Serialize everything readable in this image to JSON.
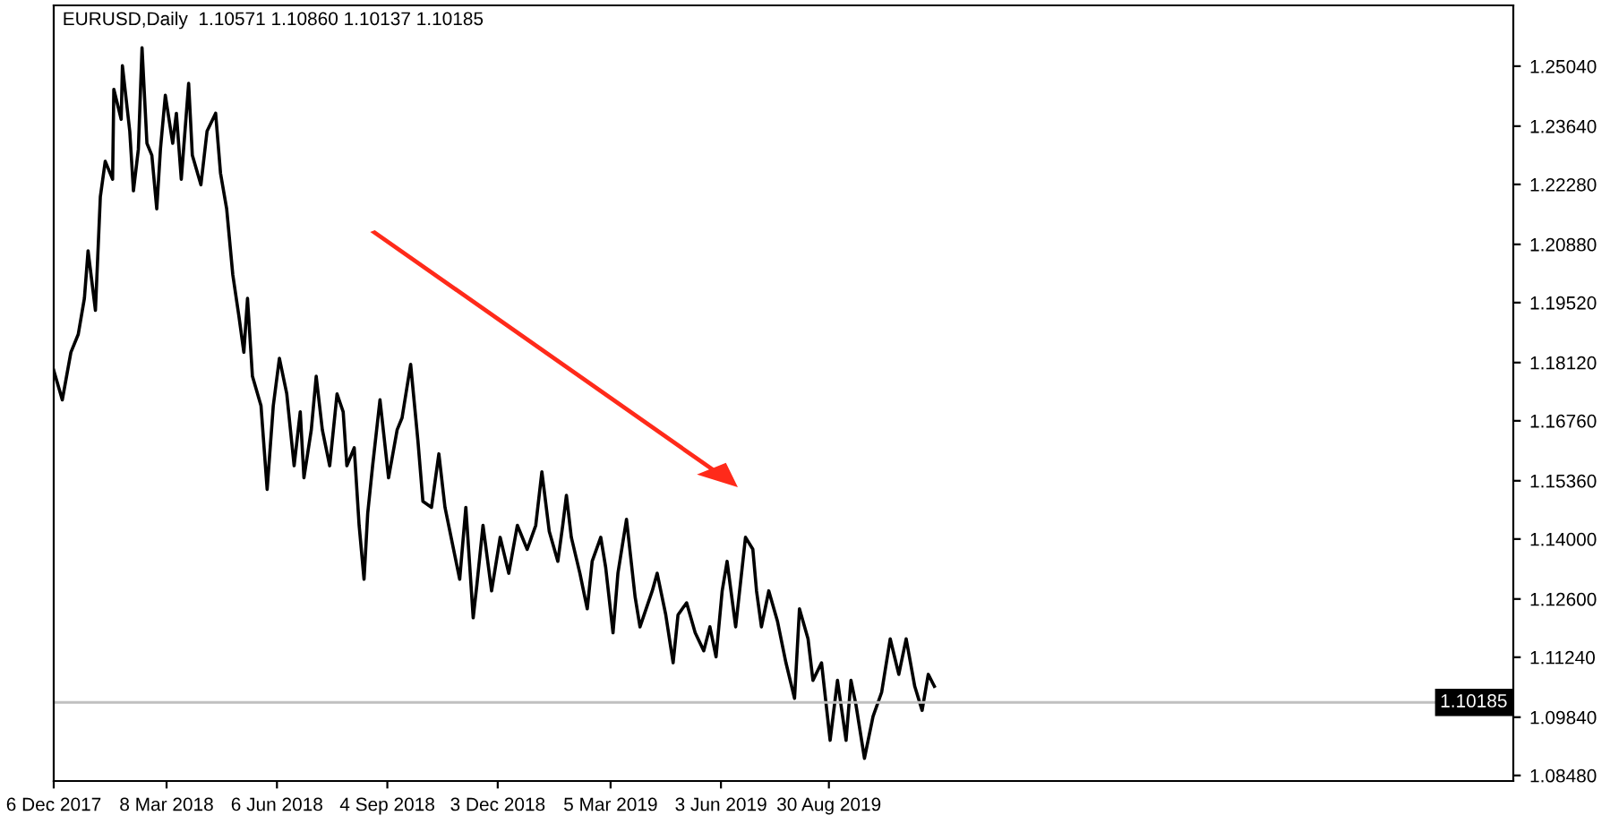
{
  "chart_data": {
    "type": "line",
    "title": "EURUSD,Daily  1.10571 1.10860 1.10137 1.10185",
    "series": [
      {
        "color": "#000000",
        "x": [
          "2017-12-06",
          "2017-12-13",
          "2017-12-20",
          "2017-12-26",
          "2017-12-31",
          "2018-01-03",
          "2018-01-09",
          "2018-01-13",
          "2018-01-17",
          "2018-01-23",
          "2018-01-24",
          "2018-01-30",
          "2018-01-31",
          "2018-02-06",
          "2018-02-09",
          "2018-02-13",
          "2018-02-16",
          "2018-02-20",
          "2018-02-24",
          "2018-02-28",
          "2018-03-03",
          "2018-03-07",
          "2018-03-13",
          "2018-03-16",
          "2018-03-20",
          "2018-03-26",
          "2018-03-29",
          "2018-04-05",
          "2018-04-10",
          "2018-04-17",
          "2018-04-21",
          "2018-04-26",
          "2018-05-01",
          "2018-05-06",
          "2018-05-10",
          "2018-05-13",
          "2018-05-17",
          "2018-05-24",
          "2018-05-29",
          "2018-06-03",
          "2018-06-08",
          "2018-06-14",
          "2018-06-20",
          "2018-06-25",
          "2018-06-28",
          "2018-07-04",
          "2018-07-08",
          "2018-07-13",
          "2018-07-19",
          "2018-07-25",
          "2018-07-30",
          "2018-08-02",
          "2018-08-08",
          "2018-08-12",
          "2018-08-16",
          "2018-08-19",
          "2018-08-23",
          "2018-08-29",
          "2018-09-05",
          "2018-09-12",
          "2018-09-16",
          "2018-09-23",
          "2018-09-29",
          "2018-10-03",
          "2018-10-10",
          "2018-10-16",
          "2018-10-21",
          "2018-10-28",
          "2018-11-02",
          "2018-11-07",
          "2018-11-13",
          "2018-11-16",
          "2018-11-21",
          "2018-11-28",
          "2018-12-05",
          "2018-12-12",
          "2018-12-19",
          "2018-12-27",
          "2019-01-03",
          "2019-01-08",
          "2019-01-14",
          "2019-01-21",
          "2019-01-25",
          "2019-01-28",
          "2019-02-01",
          "2019-02-08",
          "2019-02-14",
          "2019-02-18",
          "2019-02-25",
          "2019-03-01",
          "2019-03-07",
          "2019-03-11",
          "2019-03-18",
          "2019-03-25",
          "2019-03-29",
          "2019-04-08",
          "2019-04-12",
          "2019-04-19",
          "2019-04-25",
          "2019-04-29",
          "2019-05-06",
          "2019-05-13",
          "2019-05-20",
          "2019-05-25",
          "2019-05-30",
          "2019-06-04",
          "2019-06-08",
          "2019-06-15",
          "2019-06-23",
          "2019-06-29",
          "2019-07-02",
          "2019-07-06",
          "2019-07-12",
          "2019-07-19",
          "2019-07-26",
          "2019-08-02",
          "2019-08-06",
          "2019-08-13",
          "2019-08-17",
          "2019-08-24",
          "2019-08-31",
          "2019-09-06",
          "2019-09-13",
          "2019-09-17",
          "2019-09-21",
          "2019-09-28",
          "2019-10-05",
          "2019-10-12",
          "2019-10-19",
          "2019-10-26",
          "2019-11-01",
          "2019-11-08",
          "2019-11-14",
          "2019-11-19",
          "2019-11-24"
        ],
        "values": [
          1.1794,
          1.1725,
          1.1836,
          1.1878,
          1.1962,
          1.2073,
          1.1934,
          1.2199,
          1.2282,
          1.224,
          1.245,
          1.238,
          1.2505,
          1.2352,
          1.2213,
          1.231,
          1.2547,
          1.2324,
          1.2296,
          1.2171,
          1.231,
          1.2436,
          1.2324,
          1.2394,
          1.224,
          1.2464,
          1.2296,
          1.2227,
          1.2352,
          1.2394,
          1.2254,
          1.2171,
          1.2017,
          1.192,
          1.1836,
          1.1962,
          1.178,
          1.1711,
          1.1516,
          1.1711,
          1.1822,
          1.1739,
          1.1571,
          1.1697,
          1.1543,
          1.1655,
          1.178,
          1.1655,
          1.1571,
          1.1739,
          1.1697,
          1.1571,
          1.1613,
          1.1432,
          1.1306,
          1.146,
          1.1571,
          1.1725,
          1.1543,
          1.1655,
          1.1683,
          1.1808,
          1.1627,
          1.1488,
          1.1474,
          1.1599,
          1.1474,
          1.1376,
          1.1306,
          1.1474,
          1.1216,
          1.1293,
          1.1432,
          1.1279,
          1.1404,
          1.132,
          1.1432,
          1.1376,
          1.1432,
          1.1557,
          1.1418,
          1.1348,
          1.1432,
          1.1502,
          1.1404,
          1.132,
          1.1237,
          1.1348,
          1.1404,
          1.1334,
          1.1181,
          1.132,
          1.1446,
          1.1265,
          1.1195,
          1.1279,
          1.132,
          1.1223,
          1.1111,
          1.1223,
          1.1251,
          1.1181,
          1.1139,
          1.1195,
          1.1125,
          1.1279,
          1.1348,
          1.1195,
          1.1404,
          1.1376,
          1.1279,
          1.1195,
          1.1279,
          1.1209,
          1.1111,
          1.1028,
          1.1237,
          1.1167,
          1.107,
          1.1111,
          1.093,
          1.107,
          1.093,
          1.107,
          1.1014,
          1.0888,
          1.0986,
          1.1042,
          1.1167,
          1.1084,
          1.1167,
          1.1056,
          1.1,
          1.1084,
          1.1056
        ]
      }
    ],
    "xlim": [
      "2017-12-06",
      "2021-03-10"
    ],
    "xticks": [
      {
        "value": "2017-12-06",
        "label": "6 Dec 2017"
      },
      {
        "value": "2018-03-08",
        "label": "8 Mar 2018"
      },
      {
        "value": "2018-06-06",
        "label": "6 Jun 2018"
      },
      {
        "value": "2018-09-04",
        "label": "4 Sep 2018"
      },
      {
        "value": "2018-12-03",
        "label": "3 Dec 2018"
      },
      {
        "value": "2019-03-05",
        "label": "5 Mar 2019"
      },
      {
        "value": "2019-06-03",
        "label": "3 Jun 2019"
      },
      {
        "value": "2019-08-30",
        "label": "30 Aug 2019"
      }
    ],
    "ylim": [
      1.0835,
      1.2646
    ],
    "yticks": [
      {
        "value": 1.2504,
        "label": "1.25040"
      },
      {
        "value": 1.2364,
        "label": "1.23640"
      },
      {
        "value": 1.2228,
        "label": "1.22280"
      },
      {
        "value": 1.2088,
        "label": "1.20880"
      },
      {
        "value": 1.1952,
        "label": "1.19520"
      },
      {
        "value": 1.1812,
        "label": "1.18120"
      },
      {
        "value": 1.1676,
        "label": "1.16760"
      },
      {
        "value": 1.1536,
        "label": "1.15360"
      },
      {
        "value": 1.14,
        "label": "1.14000"
      },
      {
        "value": 1.126,
        "label": "1.12600"
      },
      {
        "value": 1.1124,
        "label": "1.11240"
      },
      {
        "value": 1.0984,
        "label": "1.09840"
      },
      {
        "value": 1.0848,
        "label": "1.08480"
      }
    ],
    "ref_lines": [
      {
        "axis": "y",
        "value": 1.10185,
        "label": "1.10185",
        "color": "#c0c0c0"
      }
    ],
    "grid": false
  }
}
